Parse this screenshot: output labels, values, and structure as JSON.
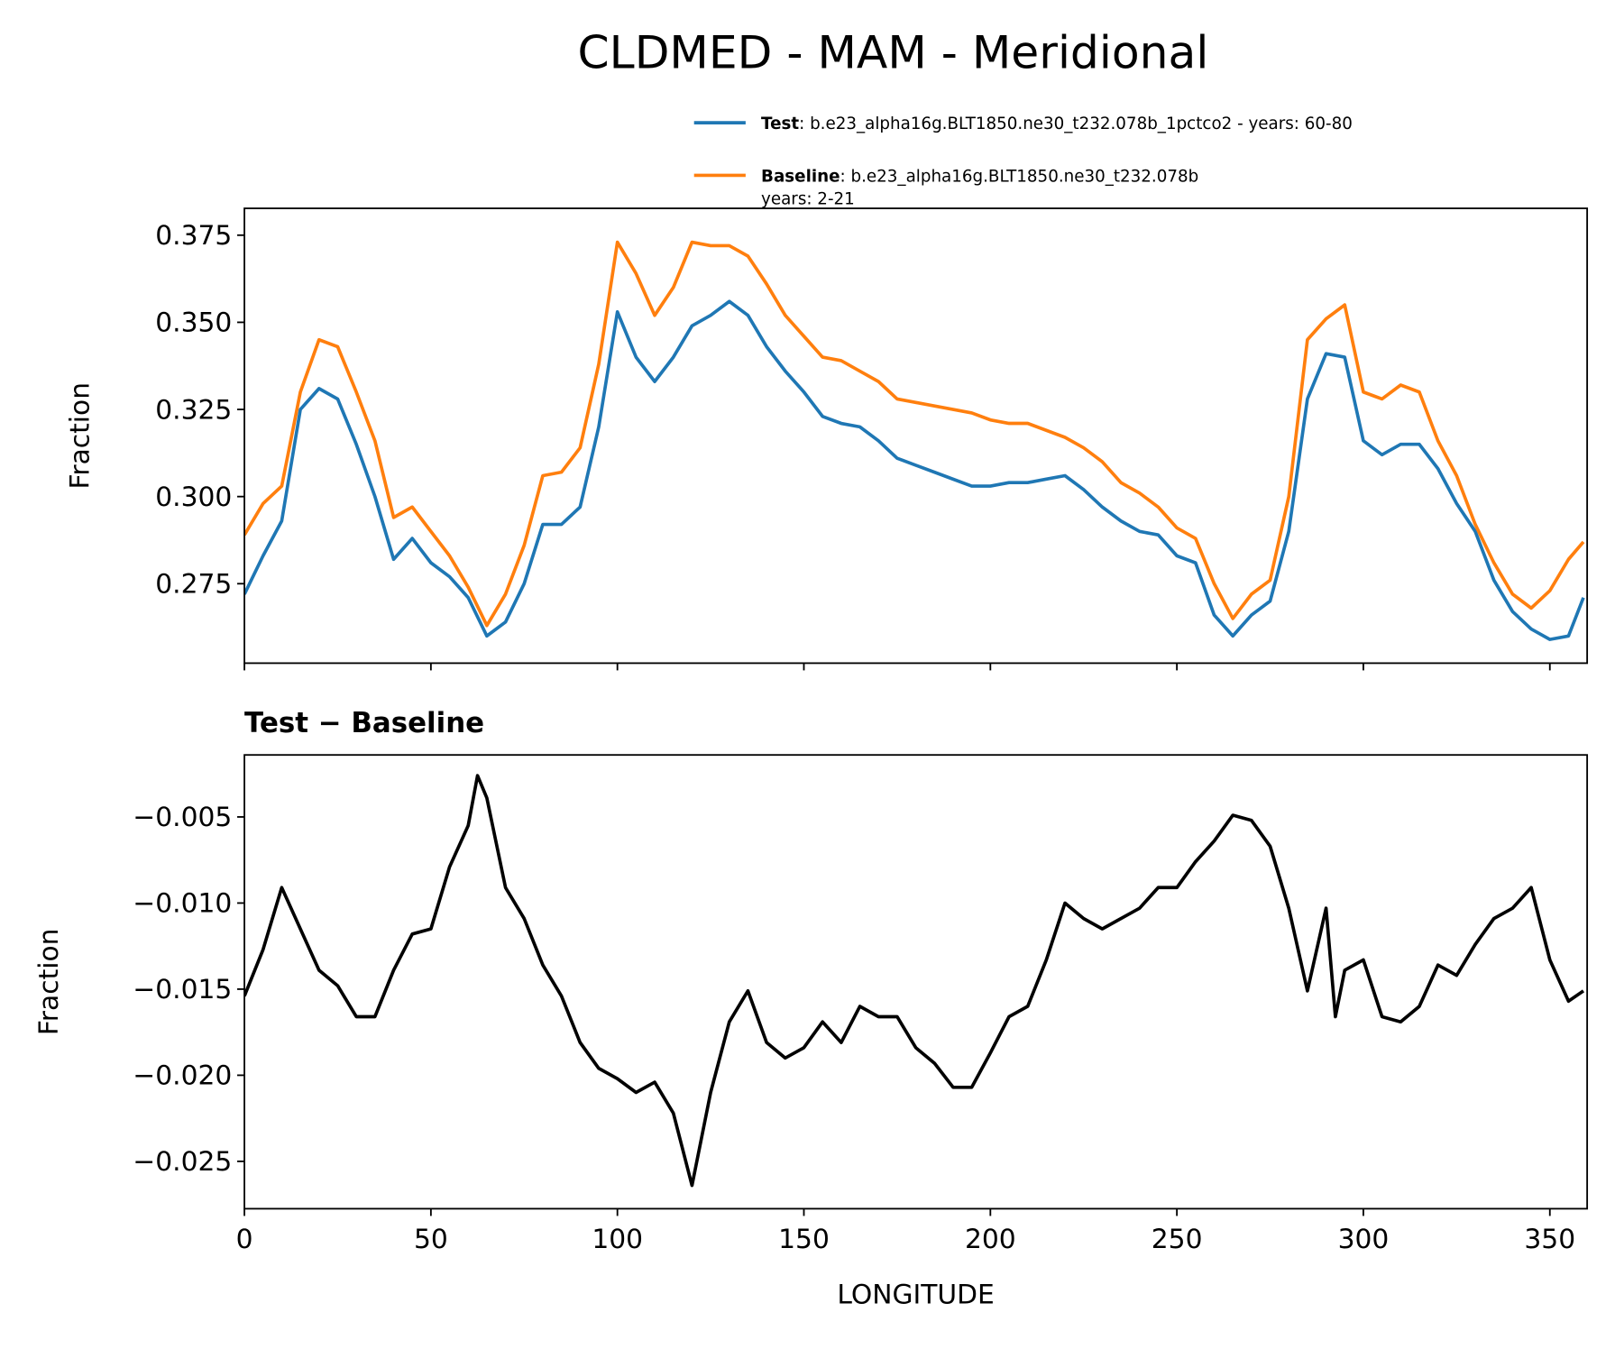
{
  "title": "CLDMED - MAM - Meridional",
  "chart_data": [
    {
      "type": "line",
      "ylabel": "Fraction",
      "x": [
        0,
        5,
        10,
        15,
        20,
        25,
        30,
        35,
        40,
        45,
        50,
        55,
        60,
        65,
        70,
        75,
        80,
        85,
        90,
        95,
        100,
        105,
        110,
        115,
        120,
        125,
        130,
        135,
        140,
        145,
        150,
        155,
        160,
        165,
        170,
        175,
        180,
        185,
        190,
        195,
        200,
        205,
        210,
        215,
        220,
        225,
        230,
        235,
        240,
        245,
        250,
        255,
        260,
        265,
        270,
        275,
        280,
        285,
        290,
        295,
        300,
        305,
        310,
        315,
        320,
        325,
        330,
        335,
        340,
        345,
        350,
        355,
        359
      ],
      "series": [
        {
          "name": "Test",
          "description": [
            ": b.e23_alpha16g.BLT1850.ne30_t232.078b_1pctco2 - years: 60-80"
          ],
          "color": "#1f77b4",
          "values": [
            0.272,
            0.283,
            0.293,
            0.325,
            0.331,
            0.328,
            0.315,
            0.3,
            0.282,
            0.288,
            0.281,
            0.277,
            0.271,
            0.26,
            0.264,
            0.275,
            0.292,
            0.292,
            0.297,
            0.32,
            0.353,
            0.34,
            0.333,
            0.34,
            0.349,
            0.352,
            0.356,
            0.352,
            0.343,
            0.336,
            0.33,
            0.323,
            0.321,
            0.32,
            0.316,
            0.311,
            0.309,
            0.307,
            0.305,
            0.303,
            0.303,
            0.304,
            0.304,
            0.305,
            0.306,
            0.302,
            0.297,
            0.293,
            0.29,
            0.289,
            0.283,
            0.281,
            0.266,
            0.26,
            0.266,
            0.27,
            0.29,
            0.328,
            0.341,
            0.34,
            0.316,
            0.312,
            0.315,
            0.315,
            0.308,
            0.298,
            0.29,
            0.276,
            0.267,
            0.262,
            0.259,
            0.26,
            0.271
          ]
        },
        {
          "name": "Baseline",
          "description": [
            ": b.e23_alpha16g.BLT1850.ne30_t232.078b",
            "years: 2-21"
          ],
          "color": "#ff7f0e",
          "values": [
            0.289,
            0.298,
            0.303,
            0.33,
            0.345,
            0.343,
            0.33,
            0.316,
            0.294,
            0.297,
            0.29,
            0.283,
            0.274,
            0.263,
            0.272,
            0.286,
            0.306,
            0.307,
            0.314,
            0.338,
            0.373,
            0.364,
            0.352,
            0.36,
            0.373,
            0.372,
            0.372,
            0.369,
            0.361,
            0.352,
            0.346,
            0.34,
            0.339,
            0.336,
            0.333,
            0.328,
            0.327,
            0.326,
            0.325,
            0.324,
            0.322,
            0.321,
            0.321,
            0.319,
            0.317,
            0.314,
            0.31,
            0.304,
            0.301,
            0.297,
            0.291,
            0.288,
            0.275,
            0.265,
            0.272,
            0.276,
            0.3,
            0.345,
            0.351,
            0.355,
            0.33,
            0.328,
            0.332,
            0.33,
            0.316,
            0.306,
            0.292,
            0.281,
            0.272,
            0.268,
            0.273,
            0.282,
            0.287
          ]
        }
      ],
      "xlim": [
        0,
        360
      ],
      "xticks": [
        0,
        50,
        100,
        150,
        200,
        250,
        300,
        350
      ],
      "ylim": [
        0.2522,
        0.3827
      ],
      "yticks": [
        0.275,
        {
          "value": 0.3,
          "label": "0.300"
        },
        0.325,
        {
          "value": 0.35,
          "label": "0.350"
        },
        0.375
      ]
    },
    {
      "type": "line",
      "title": "Test − Baseline",
      "ylabel": "Fraction",
      "xlabel": "LONGITUDE",
      "x": [
        0,
        5,
        10,
        15,
        20,
        25,
        30,
        35,
        40,
        45,
        50,
        55,
        60,
        62.5,
        65,
        70,
        75,
        80,
        85,
        90,
        95,
        100,
        105,
        110,
        115,
        120,
        125,
        130,
        135,
        140,
        145,
        150,
        155,
        160,
        165,
        170,
        175,
        180,
        185,
        190,
        195,
        200,
        205,
        210,
        215,
        220,
        225,
        230,
        235,
        240,
        245,
        250,
        255,
        260,
        265,
        270,
        275,
        280,
        285,
        290,
        292.5,
        295,
        300,
        305,
        310,
        315,
        320,
        325,
        330,
        335,
        340,
        345,
        350,
        355,
        359
      ],
      "series": [
        {
          "color": "#000000",
          "values": [
            -0.0154,
            -0.0127,
            -0.0091,
            -0.0115,
            -0.0139,
            -0.0148,
            -0.0166,
            -0.0166,
            -0.0139,
            -0.0118,
            -0.0115,
            -0.0079,
            -0.0055,
            -0.0026,
            -0.0039,
            -0.0091,
            -0.0109,
            -0.0136,
            -0.0154,
            -0.0181,
            -0.0196,
            -0.0202,
            -0.021,
            -0.0204,
            -0.0222,
            -0.0264,
            -0.021,
            -0.0169,
            -0.0151,
            -0.0181,
            -0.019,
            -0.0184,
            -0.0169,
            -0.0181,
            -0.016,
            -0.0166,
            -0.0166,
            -0.0184,
            -0.0193,
            -0.0207,
            -0.0207,
            -0.0187,
            -0.0166,
            -0.016,
            -0.0133,
            -0.01,
            -0.0109,
            -0.0115,
            -0.0109,
            -0.0103,
            -0.0091,
            -0.0091,
            -0.0076,
            -0.0064,
            -0.0049,
            -0.0052,
            -0.0067,
            -0.0103,
            -0.0151,
            -0.0103,
            -0.0166,
            -0.0139,
            -0.0133,
            -0.0166,
            -0.0169,
            -0.016,
            -0.0136,
            -0.0142,
            -0.0124,
            -0.0109,
            -0.0103,
            -0.0091,
            -0.0133,
            -0.0157,
            -0.0151
          ]
        }
      ],
      "xlim": [
        0,
        360
      ],
      "xticks": [
        0,
        50,
        100,
        150,
        200,
        250,
        300,
        350
      ],
      "ylim": [
        -0.02775,
        -0.0014
      ],
      "yticks": [
        {
          "value": -0.025,
          "label": "−0.025"
        },
        {
          "value": -0.02,
          "label": "−0.020"
        },
        {
          "value": -0.015,
          "label": "−0.015"
        },
        {
          "value": -0.01,
          "label": "−0.010"
        },
        {
          "value": -0.005,
          "label": "−0.005"
        }
      ]
    }
  ]
}
